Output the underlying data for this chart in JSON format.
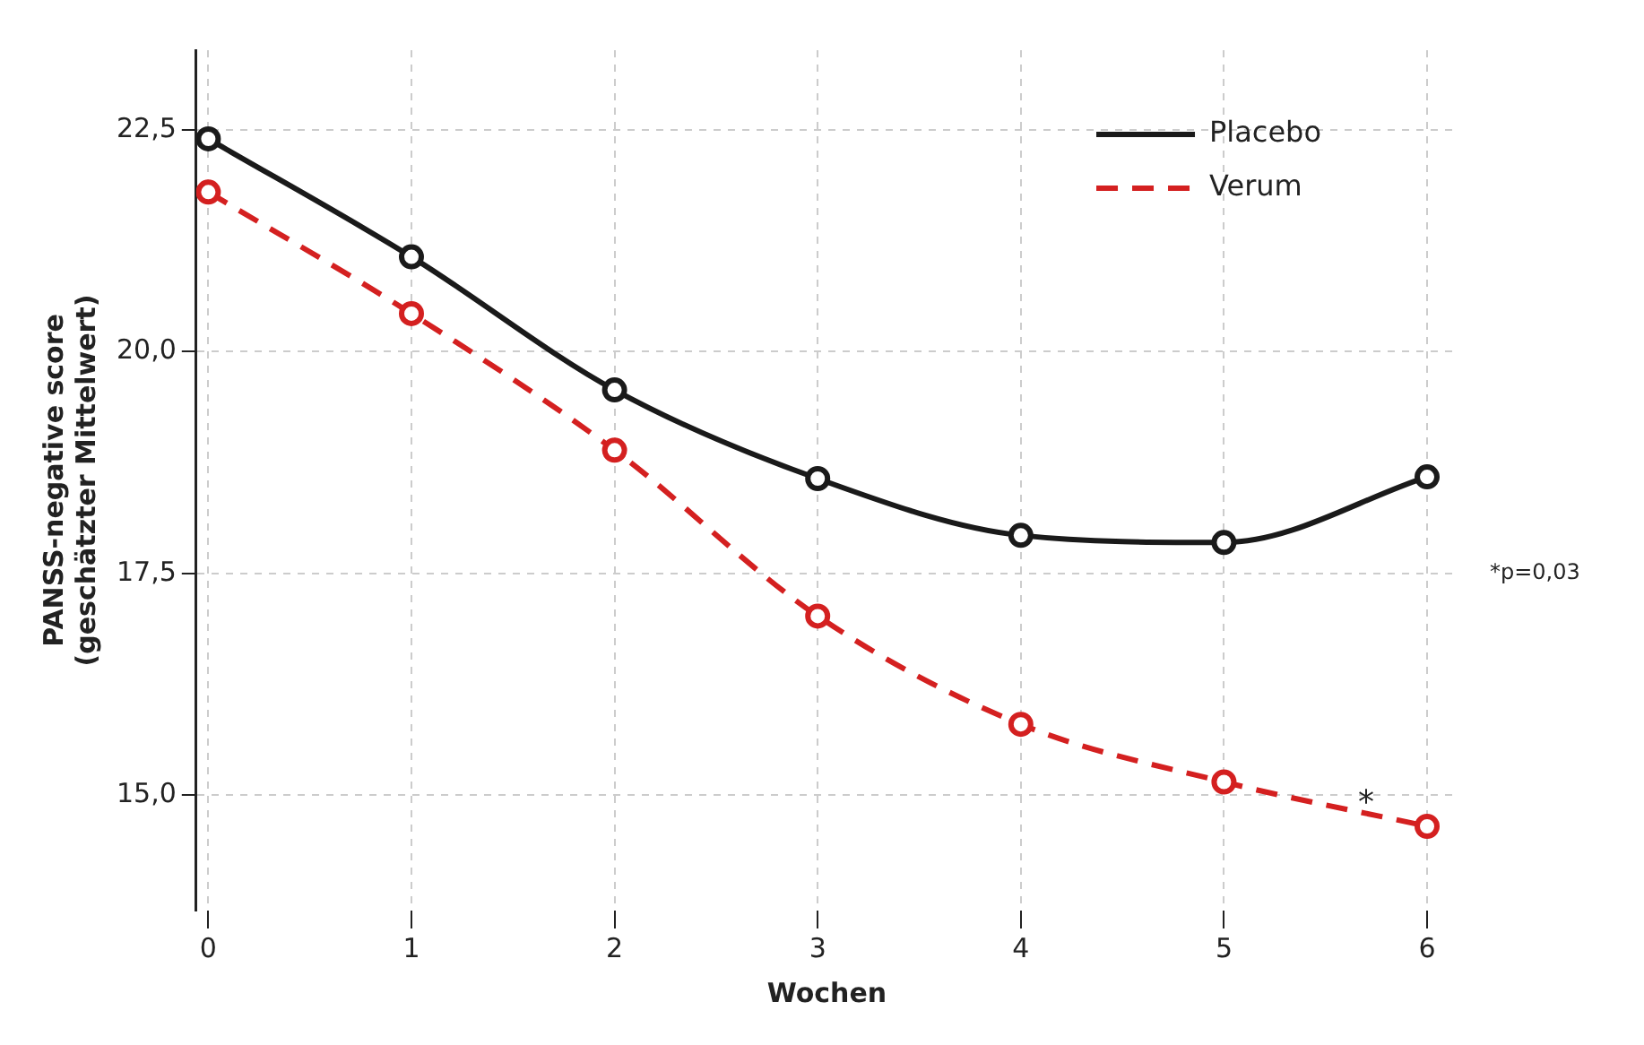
{
  "chart_data": {
    "type": "line",
    "xlabel": "Wochen",
    "ylabel": "PANSS-negative score\n(geschätzter Mittelwert)",
    "x": [
      0,
      1,
      2,
      3,
      4,
      5,
      6
    ],
    "series": [
      {
        "name": "Placebo",
        "color": "#1a1a1a",
        "line_style": "solid",
        "values": [
          22.4,
          21.07,
          19.57,
          18.57,
          17.93,
          17.85,
          18.59
        ]
      },
      {
        "name": "Verum",
        "color": "#d42020",
        "line_style": "dashed",
        "values": [
          21.8,
          20.43,
          18.89,
          17.02,
          15.8,
          15.15,
          14.65
        ]
      }
    ],
    "xlim": [
      -0.06,
      6.15
    ],
    "xticks": [
      0,
      1,
      2,
      3,
      4,
      5,
      6
    ],
    "ylim": [
      13.7,
      23.4
    ],
    "yticks": [
      {
        "value": 15,
        "label": "15,0"
      },
      {
        "value": 17.5,
        "label": "17,5"
      },
      {
        "value": 20,
        "label": "20,0"
      },
      {
        "value": 22.5,
        "label": "22,5"
      }
    ],
    "grid": true,
    "legend": "top right",
    "marker": "circle",
    "annotations": [
      "*p=0,03",
      {
        "text": "*",
        "x": 5.7,
        "y": 14.9
      }
    ]
  }
}
